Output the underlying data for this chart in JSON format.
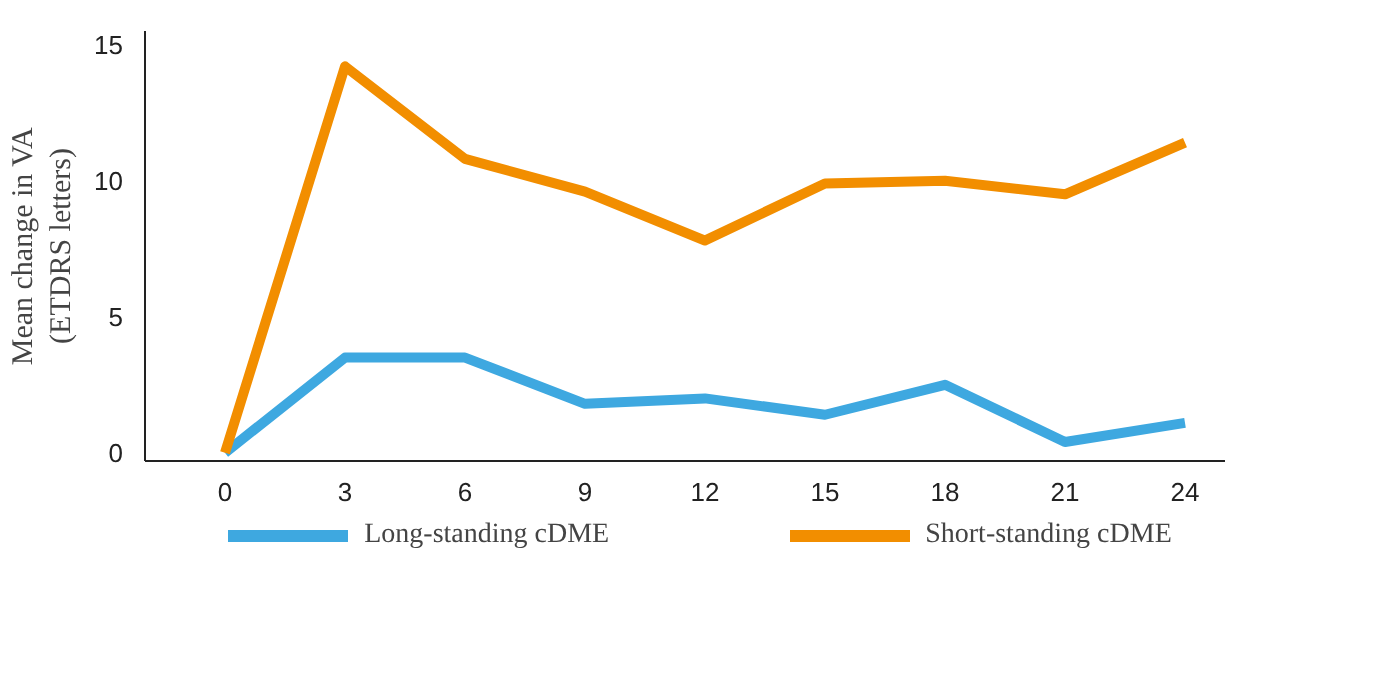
{
  "chart_data": {
    "type": "line",
    "ylabel": "Mean change in VA\n(ETDRS letters)",
    "x": [
      0,
      3,
      6,
      9,
      12,
      15,
      18,
      21,
      24
    ],
    "series": [
      {
        "name": "Long-standing cDME",
        "color": "#3ea8e0",
        "values": [
          0,
          3.5,
          3.5,
          1.8,
          2.0,
          1.4,
          2.5,
          0.4,
          1.1
        ]
      },
      {
        "name": "Short-standing cDME",
        "color": "#f28e00",
        "values": [
          0,
          14.2,
          10.8,
          9.6,
          7.8,
          9.9,
          10.0,
          9.5,
          11.4
        ]
      }
    ],
    "xlim": [
      -2,
      25
    ],
    "ylim": [
      -0.3,
      15.5
    ],
    "xticks": [
      0,
      3,
      6,
      9,
      12,
      15,
      18,
      21,
      24
    ],
    "yticks": [
      0,
      5,
      10,
      15
    ],
    "grid": false,
    "legend": "bottom",
    "marker": "none",
    "line_style": "solid"
  }
}
